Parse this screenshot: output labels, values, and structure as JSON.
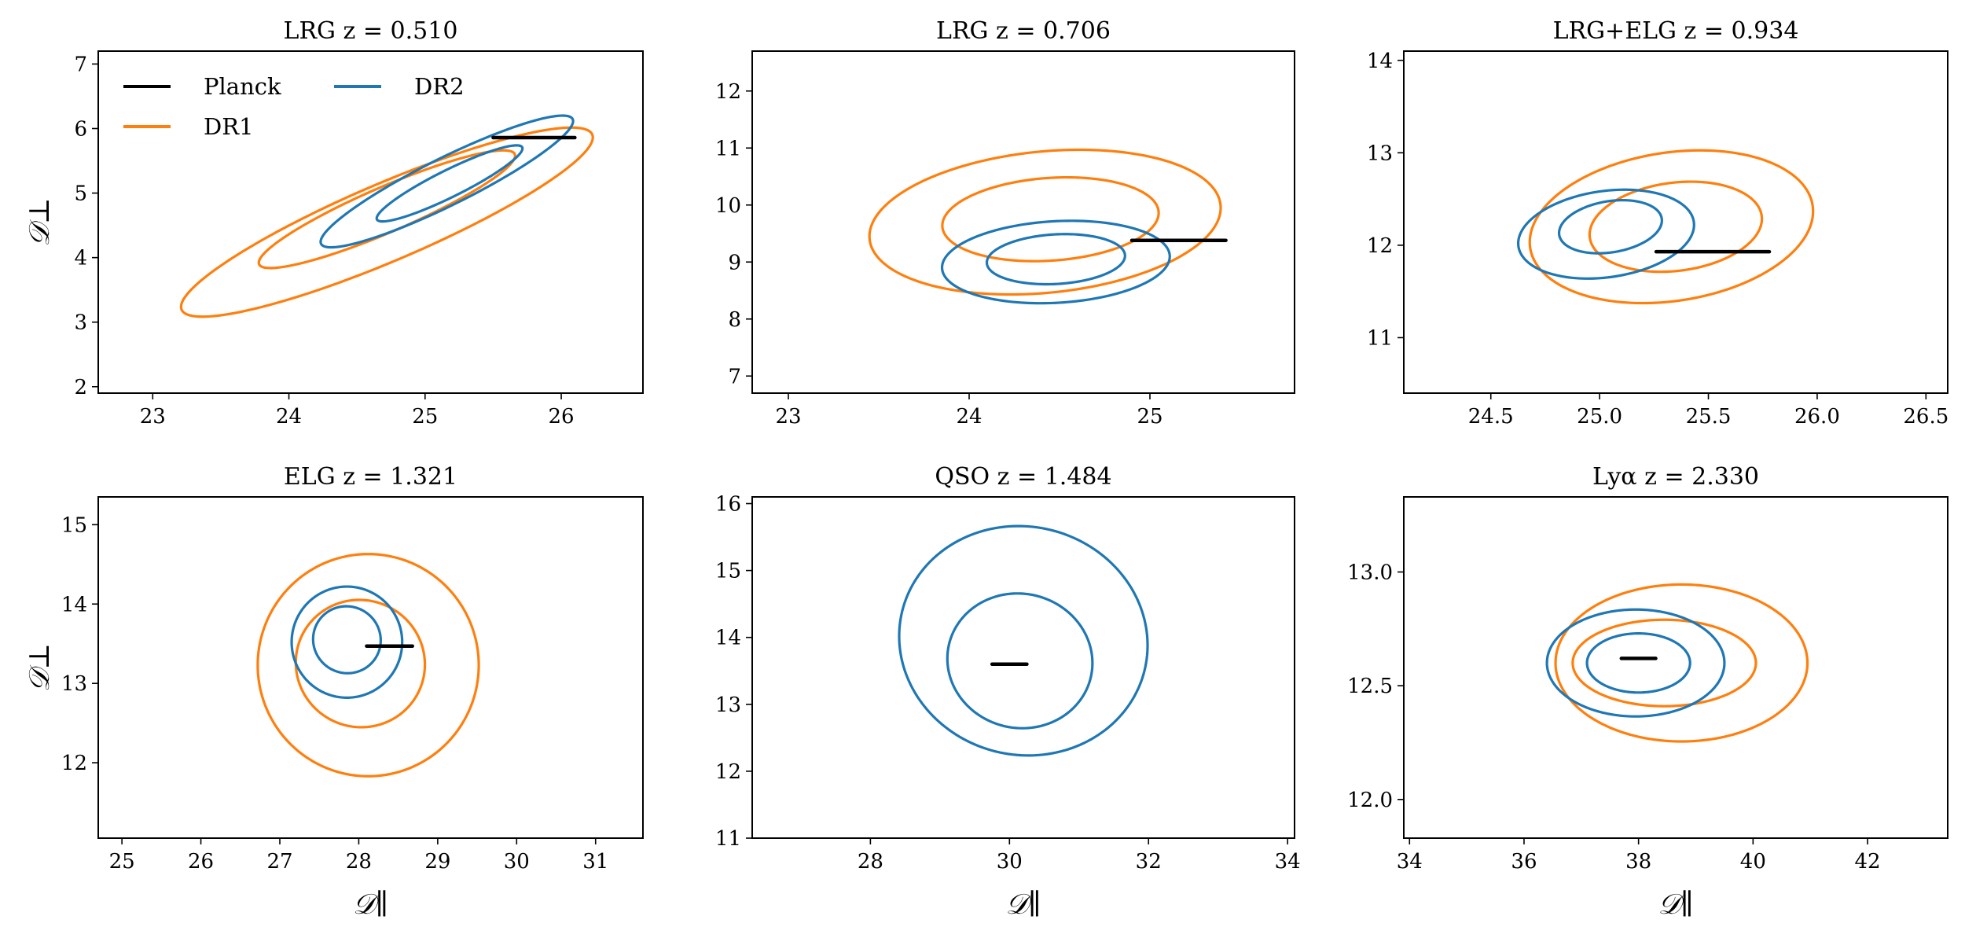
{
  "colors": {
    "planck": "#000000",
    "dr1": "#ff7f0e",
    "dr2": "#1f77b4"
  },
  "legend": {
    "placement": "top-left",
    "entries": [
      {
        "key": "planck",
        "label": "Planck"
      },
      {
        "key": "dr1",
        "label": "DR1"
      },
      {
        "key": "dr2",
        "label": "DR2"
      }
    ]
  },
  "chart_data": [
    {
      "type": "contour",
      "title": "LRG z = 0.510",
      "xlabel": "",
      "ylabel": "𝒟⊥",
      "xlim": [
        22.6,
        26.6
      ],
      "ylim": [
        1.9,
        7.2
      ],
      "xticks": [
        23,
        24,
        25,
        26
      ],
      "yticks": [
        2,
        3,
        4,
        5,
        6,
        7
      ],
      "planck": {
        "x": [
          25.5,
          26.1
        ],
        "y": 5.86
      },
      "series": [
        {
          "name": "DR1",
          "contours": [
            {
              "cx": 24.72,
              "cy": 4.75,
              "a": 1.28,
              "b": 0.28,
              "angle_deg": 44,
              "level": "1-sigma"
            },
            {
              "cx": 24.72,
              "cy": 4.55,
              "a": 2.05,
              "b": 0.48,
              "angle_deg": 44,
              "level": "2-sigma"
            }
          ]
        },
        {
          "name": "DR2",
          "contours": [
            {
              "cx": 25.18,
              "cy": 5.15,
              "a": 0.78,
              "b": 0.16,
              "angle_deg": 48,
              "level": "1-sigma"
            },
            {
              "cx": 25.16,
              "cy": 5.18,
              "a": 1.35,
              "b": 0.28,
              "angle_deg": 48,
              "level": "2-sigma"
            }
          ]
        }
      ]
    },
    {
      "type": "contour",
      "title": "LRG z = 0.706",
      "xlabel": "",
      "ylabel": "",
      "xlim": [
        22.8,
        25.8
      ],
      "ylim": [
        6.7,
        12.7
      ],
      "xticks": [
        23,
        24,
        25
      ],
      "yticks": [
        7,
        8,
        9,
        10,
        11,
        12
      ],
      "planck": {
        "x": [
          24.9,
          25.42
        ],
        "y": 9.38
      },
      "series": [
        {
          "name": "DR1",
          "contours": [
            {
              "cx": 24.45,
              "cy": 9.75,
              "a": 0.58,
              "b": 0.75,
              "angle_deg": -18,
              "level": "1-sigma"
            },
            {
              "cx": 24.42,
              "cy": 9.7,
              "a": 0.93,
              "b": 1.3,
              "angle_deg": -18,
              "level": "2-sigma"
            }
          ]
        },
        {
          "name": "DR2",
          "contours": [
            {
              "cx": 24.48,
              "cy": 9.05,
              "a": 0.37,
              "b": 0.45,
              "angle_deg": -22,
              "level": "1-sigma"
            },
            {
              "cx": 24.48,
              "cy": 9.0,
              "a": 0.61,
              "b": 0.74,
              "angle_deg": -22,
              "level": "2-sigma"
            }
          ]
        }
      ]
    },
    {
      "type": "contour",
      "title": "LRG+ELG z = 0.934",
      "xlabel": "",
      "ylabel": "",
      "xlim": [
        24.1,
        26.6
      ],
      "ylim": [
        10.4,
        14.1
      ],
      "xticks": [
        24.5,
        25.0,
        25.5,
        26.0,
        26.5
      ],
      "yticks": [
        11,
        12,
        13,
        14
      ],
      "planck": {
        "x": [
          25.26,
          25.78
        ],
        "y": 11.93
      },
      "series": [
        {
          "name": "DR1",
          "contours": [
            {
              "cx": 25.35,
              "cy": 12.2,
              "a": 0.38,
              "b": 0.5,
              "angle_deg": -20,
              "level": "1-sigma"
            },
            {
              "cx": 25.33,
              "cy": 12.2,
              "a": 0.62,
              "b": 0.85,
              "angle_deg": -20,
              "level": "2-sigma"
            }
          ]
        },
        {
          "name": "DR2",
          "contours": [
            {
              "cx": 25.05,
              "cy": 12.2,
              "a": 0.22,
              "b": 0.3,
              "angle_deg": -25,
              "level": "1-sigma"
            },
            {
              "cx": 25.03,
              "cy": 12.12,
              "a": 0.38,
              "b": 0.5,
              "angle_deg": -25,
              "level": "2-sigma"
            }
          ]
        }
      ]
    },
    {
      "type": "contour",
      "title": "ELG z = 1.321",
      "xlabel": "𝒟∥",
      "ylabel": "𝒟⊥",
      "xlim": [
        24.7,
        31.6
      ],
      "ylim": [
        11.05,
        15.35
      ],
      "xticks": [
        25,
        26,
        27,
        28,
        29,
        30,
        31
      ],
      "yticks": [
        12,
        13,
        14,
        15
      ],
      "planck": {
        "x": [
          28.1,
          28.68
        ],
        "y": 13.47
      },
      "series": [
        {
          "name": "DR1",
          "contours": [
            {
              "cx": 28.02,
              "cy": 13.25,
              "a": 0.82,
              "b": 0.8,
              "angle_deg": -20,
              "level": "1-sigma"
            },
            {
              "cx": 28.12,
              "cy": 13.23,
              "a": 1.4,
              "b": 1.4,
              "angle_deg": -20,
              "level": "2-sigma"
            }
          ]
        },
        {
          "name": "DR2",
          "contours": [
            {
              "cx": 27.85,
              "cy": 13.55,
              "a": 0.43,
              "b": 0.42,
              "angle_deg": -25,
              "level": "1-sigma"
            },
            {
              "cx": 27.85,
              "cy": 13.52,
              "a": 0.7,
              "b": 0.7,
              "angle_deg": -25,
              "level": "2-sigma"
            }
          ]
        }
      ]
    },
    {
      "type": "contour",
      "title": "QSO z = 1.484",
      "xlabel": "𝒟∥",
      "ylabel": "",
      "xlim": [
        26.3,
        34.1
      ],
      "ylim": [
        11.0,
        16.1
      ],
      "xticks": [
        28,
        30,
        32,
        34
      ],
      "yticks": [
        11,
        12,
        13,
        14,
        15,
        16
      ],
      "planck": {
        "x": [
          29.75,
          30.25
        ],
        "y": 13.6
      },
      "series": [
        {
          "name": "DR2",
          "contours": [
            {
              "cx": 30.15,
              "cy": 13.65,
              "a": 1.05,
              "b": 1.0,
              "angle_deg": -22,
              "level": "1-sigma"
            },
            {
              "cx": 30.2,
              "cy": 13.95,
              "a": 1.8,
              "b": 1.7,
              "angle_deg": -22,
              "level": "2-sigma"
            }
          ]
        }
      ]
    },
    {
      "type": "contour",
      "title": "Lyα z = 2.330",
      "xlabel": "𝒟∥",
      "ylabel": "",
      "xlim": [
        33.9,
        43.4
      ],
      "ylim": [
        11.83,
        13.33
      ],
      "xticks": [
        34,
        36,
        38,
        40,
        42
      ],
      "yticks": [
        12.0,
        12.5,
        13.0
      ],
      "planck": {
        "x": [
          37.7,
          38.3
        ],
        "y": 12.62
      },
      "series": [
        {
          "name": "DR1",
          "contours": [
            {
              "cx": 38.45,
              "cy": 12.6,
              "a": 1.6,
              "b": 0.19,
              "angle_deg": 0,
              "level": "1-sigma"
            },
            {
              "cx": 38.75,
              "cy": 12.6,
              "a": 2.2,
              "b": 0.345,
              "angle_deg": 0,
              "level": "2-sigma"
            }
          ]
        },
        {
          "name": "DR2",
          "contours": [
            {
              "cx": 38.0,
              "cy": 12.6,
              "a": 0.9,
              "b": 0.13,
              "angle_deg": 0,
              "level": "1-sigma"
            },
            {
              "cx": 37.95,
              "cy": 12.6,
              "a": 1.55,
              "b": 0.235,
              "angle_deg": 0,
              "level": "2-sigma"
            }
          ]
        }
      ]
    }
  ]
}
